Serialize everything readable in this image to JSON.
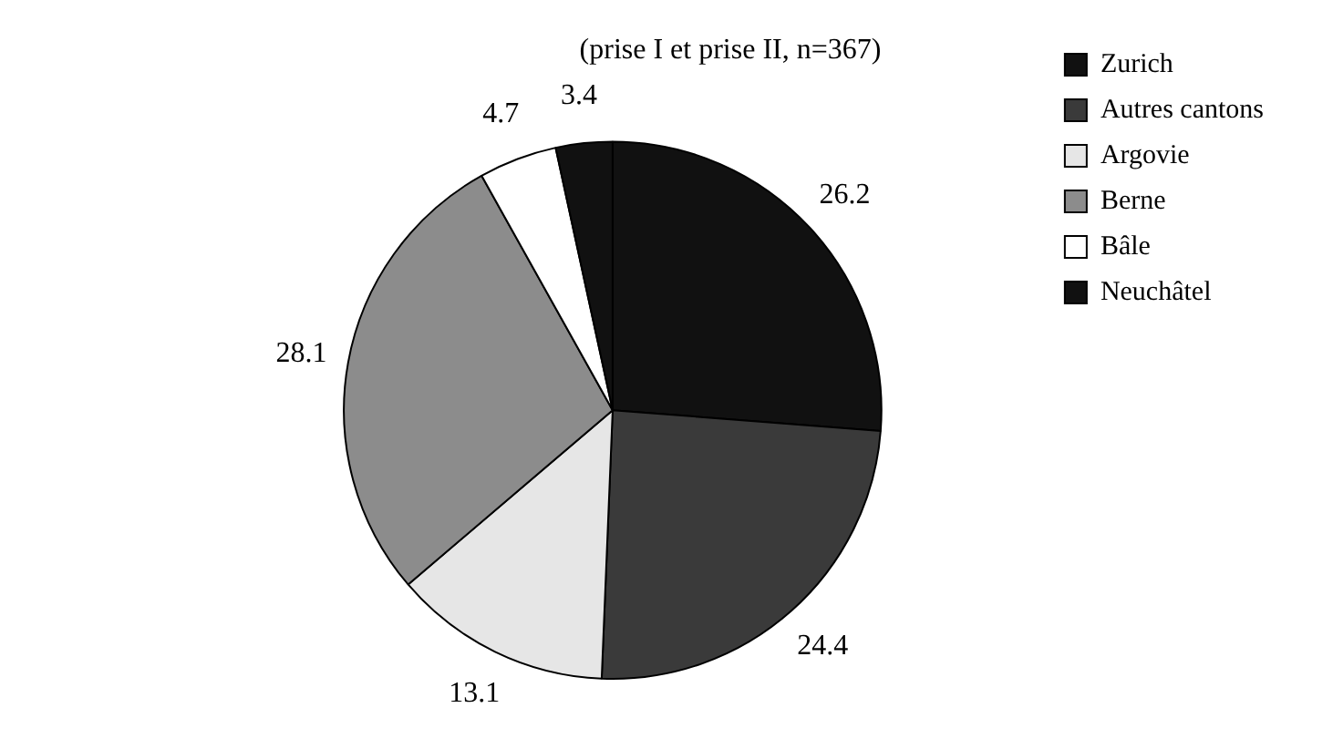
{
  "chart_data": {
    "type": "pie",
    "title": "(prise I et prise II, n=367)",
    "categories": [
      "Zurich",
      "Autres cantons",
      "Argovie",
      "Berne",
      "Bâle",
      "Neuchâtel"
    ],
    "values": [
      26.2,
      24.4,
      13.1,
      28.1,
      4.7,
      3.4
    ],
    "colors": [
      "#111111",
      "#3a3a3a",
      "#e6e6e6",
      "#8c8c8c",
      "#ffffff",
      "#111111"
    ],
    "data_labels": true,
    "legend": "top right"
  }
}
